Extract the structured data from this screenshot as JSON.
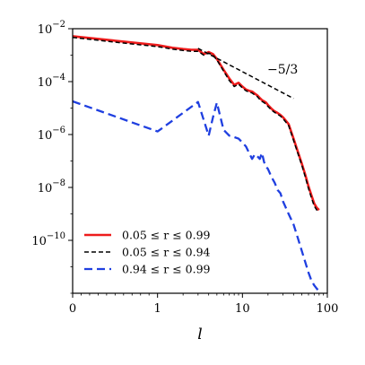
{
  "chart_data": {
    "type": "line",
    "x_scale": "symlog",
    "y_scale": "log",
    "xlabel": "l",
    "ylabel": "",
    "xlim": [
      0,
      100
    ],
    "ylim": [
      1e-12,
      0.01
    ],
    "x_ticks": [
      {
        "value": 0,
        "label": "0"
      },
      {
        "value": 1,
        "label": "1"
      },
      {
        "value": 10,
        "label": "10"
      },
      {
        "value": 100,
        "label": "100"
      }
    ],
    "y_ticks": [
      {
        "value": 0.01,
        "base": "10",
        "exp": "−2"
      },
      {
        "value": 0.0001,
        "base": "10",
        "exp": "−4"
      },
      {
        "value": 1e-06,
        "base": "10",
        "exp": "−6"
      },
      {
        "value": 1e-08,
        "base": "10",
        "exp": "−8"
      },
      {
        "value": 1e-10,
        "base": "10",
        "exp": "−10"
      }
    ],
    "grid": false,
    "legend_position": "lower-left",
    "series": [
      {
        "name": "0.05 ≤ r ≤ 0.99",
        "color": "#ee1c1c",
        "style": "solid",
        "x": [
          0,
          0.5,
          1,
          1.5,
          2,
          2.5,
          3,
          3.5,
          4,
          4.5,
          5,
          6,
          7,
          8,
          9,
          10,
          11,
          12,
          13,
          14,
          15,
          16,
          17,
          18,
          19,
          20,
          22,
          24,
          26,
          28,
          30,
          35,
          40,
          45,
          50,
          55,
          60,
          65,
          70,
          75,
          80
        ],
        "y": [
          0.0052,
          0.0035,
          0.0024,
          0.0019,
          0.0017,
          0.0016,
          0.0016,
          0.0011,
          0.0013,
          0.0011,
          0.00072,
          0.00028,
          0.00013,
          7.5e-05,
          9e-05,
          6.5e-05,
          5e-05,
          4.5e-05,
          4.2e-05,
          3.5e-05,
          3e-05,
          2.4e-05,
          2e-05,
          1.8e-05,
          1.6e-05,
          1.3e-05,
          9.5e-06,
          7.5e-06,
          6.5e-06,
          5.5e-06,
          4.5e-06,
          2.5e-06,
          7e-07,
          2.2e-07,
          8e-08,
          3e-08,
          1.1e-08,
          5e-09,
          2.5e-09,
          1.7e-09,
          1.4e-09
        ]
      },
      {
        "name": "0.05 ≤ r ≤ 0.94",
        "color": "#000000",
        "style": "dashed",
        "x": [
          0,
          0.5,
          1,
          1.5,
          2,
          2.5,
          3,
          3.5,
          4,
          4.5,
          5,
          6,
          7,
          8,
          9,
          10,
          11,
          12,
          13,
          14,
          15,
          16,
          17,
          18,
          19,
          20,
          22,
          24,
          26,
          28,
          30,
          35,
          40,
          45,
          50,
          55,
          60,
          65,
          70,
          75,
          80
        ],
        "y": [
          0.0047,
          0.0031,
          0.0021,
          0.0017,
          0.0015,
          0.0014,
          0.0014,
          0.001,
          0.0012,
          0.001,
          0.00066,
          0.00025,
          0.00011,
          6.5e-05,
          8e-05,
          5.8e-05,
          4.5e-05,
          4e-05,
          3.7e-05,
          3.1e-05,
          2.7e-05,
          2.1e-05,
          1.8e-05,
          1.6e-05,
          1.4e-05,
          1.15e-05,
          8.5e-06,
          6.8e-06,
          5.8e-06,
          5e-06,
          4e-06,
          2.2e-06,
          6e-07,
          1.9e-07,
          7e-08,
          2.5e-08,
          9e-09,
          4e-09,
          2e-09,
          1.4e-09,
          1.2e-09
        ]
      },
      {
        "name": "0.94 ≤ r ≤ 0.99",
        "color": "#1f3fe0",
        "style": "dashed",
        "x": [
          0,
          1,
          3,
          4,
          4.5,
          5,
          6,
          7,
          8,
          9,
          10,
          11,
          12,
          13,
          14,
          15,
          16,
          17,
          18,
          19,
          20,
          22,
          24,
          26,
          28,
          30,
          35,
          40,
          45,
          50,
          55,
          60,
          65,
          70,
          75,
          80
        ],
        "y": [
          1.8e-05,
          1.3e-06,
          1.7e-05,
          9e-07,
          4.5e-06,
          1.6e-05,
          1.5e-06,
          9e-07,
          8e-07,
          7e-07,
          5e-07,
          3.5e-07,
          2e-07,
          1.2e-07,
          1.8e-07,
          1.5e-07,
          1.2e-07,
          2e-07,
          9e-08,
          6e-08,
          5e-08,
          2.5e-08,
          1.5e-08,
          8e-09,
          6e-09,
          3e-09,
          1e-09,
          4e-10,
          1.2e-10,
          4e-11,
          1.5e-11,
          6e-12,
          3e-12,
          2e-12,
          1.5e-12,
          1.2e-12
        ]
      }
    ],
    "reference_line": {
      "label": "−5/3",
      "color": "#000000",
      "style": "dashed",
      "x": [
        3,
        40
      ],
      "y": [
        0.0018,
        2.3e-05
      ]
    }
  }
}
